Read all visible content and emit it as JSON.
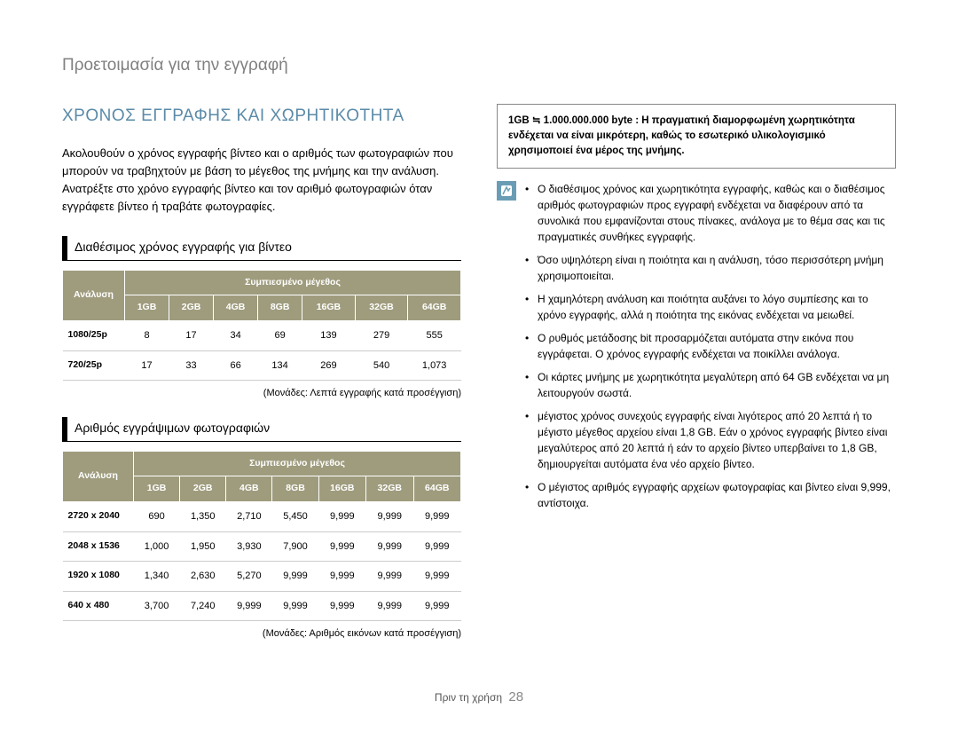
{
  "header": "Προετοιμασία για την εγγραφή",
  "mainHeading": "ΧΡΟΝΟΣ ΕΓΓΡΑΦΗΣ ΚΑΙ ΧΩΡΗΤΙΚΟΤΗΤΑ",
  "intro": "Ακολουθούν ο χρόνος εγγραφής βίντεο και ο αριθμός των φωτογραφιών που μπορούν να τραβηχτούν με βάση το μέγεθος της μνήμης και την ανάλυση. Ανατρέξτε στο χρόνο εγγραφής βίντεο και τον αριθμό φωτογραφιών όταν εγγράφετε βίντεο ή τραβάτε φωτογραφίες.",
  "table1": {
    "title": "Διαθέσιμος χρόνος εγγραφής για βίντεο",
    "colGroupLabel": "Συμπιεσμένο μέγεθος",
    "rowHeader": "Ανάλυση",
    "columns": [
      "1GB",
      "2GB",
      "4GB",
      "8GB",
      "16GB",
      "32GB",
      "64GB"
    ],
    "rows": [
      {
        "label": "1080/25p",
        "cells": [
          "8",
          "17",
          "34",
          "69",
          "139",
          "279",
          "555"
        ]
      },
      {
        "label": "720/25p",
        "cells": [
          "17",
          "33",
          "66",
          "134",
          "269",
          "540",
          "1,073"
        ]
      }
    ],
    "caption": "(Μονάδες: Λεπτά εγγραφής κατά προσέγγιση)"
  },
  "table2": {
    "title": "Αριθμός εγγράψιμων φωτογραφιών",
    "colGroupLabel": "Συμπιεσμένο μέγεθος",
    "rowHeader": "Ανάλυση",
    "columns": [
      "1GB",
      "2GB",
      "4GB",
      "8GB",
      "16GB",
      "32GB",
      "64GB"
    ],
    "rows": [
      {
        "label": "2720 x 2040",
        "cells": [
          "690",
          "1,350",
          "2,710",
          "5,450",
          "9,999",
          "9,999",
          "9,999"
        ]
      },
      {
        "label": "2048 x 1536",
        "cells": [
          "1,000",
          "1,950",
          "3,930",
          "7,900",
          "9,999",
          "9,999",
          "9,999"
        ]
      },
      {
        "label": "1920 x 1080",
        "cells": [
          "1,340",
          "2,630",
          "5,270",
          "9,999",
          "9,999",
          "9,999",
          "9,999"
        ]
      },
      {
        "label": "640 x 480",
        "cells": [
          "3,700",
          "7,240",
          "9,999",
          "9,999",
          "9,999",
          "9,999",
          "9,999"
        ]
      }
    ],
    "caption": "(Μονάδες: Αριθμός εικόνων κατά προσέγγιση)"
  },
  "noteBox": "1GB ≒ 1.000.000.000 byte : Η πραγματική διαμορφωμένη χωρητικότητα ενδέχεται να είναι μικρότερη, καθώς το εσωτερικό υλικολογισμικό χρησιμοποιεί ένα μέρος της μνήμης.",
  "bullets": [
    "Ο διαθέσιμος χρόνος και χωρητικότητα εγγραφής, καθώς και ο διαθέσιμος αριθμός φωτογραφιών προς εγγραφή ενδέχεται να διαφέρουν από τα συνολικά που εμφανίζονται στους πίνακες, ανάλογα με το θέμα σας και τις πραγματικές συνθήκες εγγραφής.",
    "Όσο υψηλότερη είναι η ποιότητα και η ανάλυση, τόσο περισσότερη μνήμη χρησιμοποιείται.",
    "Η χαμηλότερη ανάλυση και ποιότητα αυξάνει το λόγο συμπίεσης και το χρόνο εγγραφής, αλλά η ποιότητα της εικόνας ενδέχεται να μειωθεί.",
    "Ο ρυθμός μετάδοσης bit προσαρμόζεται αυτόματα στην εικόνα που εγγράφεται. Ο χρόνος εγγραφής ενδέχεται να ποικίλλει ανάλογα.",
    "Οι κάρτες μνήμης με χωρητικότητα μεγαλύτερη από 64 GB ενδέχεται να μη λειτουργούν σωστά.",
    "μέγιστος χρόνος συνεχούς εγγραφής είναι λιγότερος από 20 λεπτά ή το μέγιστο μέγεθος αρχείου είναι 1,8 GB. Εάν ο χρόνος εγγραφής βίντεο είναι μεγαλύτερος από 20 λεπτά ή εάν το αρχείο βίντεο υπερβαίνει το 1,8 GB, δημιουργείται αυτόματα ένα νέο αρχείο βίντεο.",
    "Ο μέγιστος αριθμός εγγραφής αρχείων φωτογραφίας και βίντεο είναι 9,999, αντίστοιχα."
  ],
  "footerText": "Πριν τη χρήση",
  "pageNumber": "28",
  "colors": {
    "headingBlue": "#5b8ba8",
    "tableHeaderBg": "#9f9c7e",
    "iconBg": "#6a9db5",
    "headerGray": "#808080"
  }
}
